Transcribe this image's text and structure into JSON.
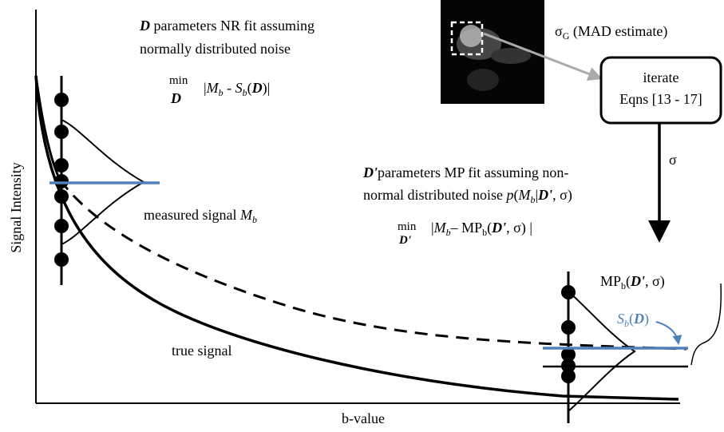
{
  "axes": {
    "y_label": "Signal Intensity",
    "x_label": "b-value"
  },
  "nr_fit": {
    "title": [
      "D",
      " parameters NR fit assuming"
    ],
    "subtitle": "normally distributed noise",
    "min": "min",
    "min_var": "D",
    "formula": [
      "|",
      "M",
      "b",
      " - ",
      "S",
      "b",
      "(",
      "D",
      ")",
      "|"
    ]
  },
  "mp_fit": {
    "title": [
      "D",
      "'",
      "parameters MP fit assuming  non-"
    ],
    "subtitle": [
      "normal distributed noise ",
      "p",
      "(",
      "M",
      "b",
      "|",
      "D",
      "'",
      ", σ)"
    ],
    "min": "min",
    "min_var": "D'",
    "formula": [
      "|",
      "M",
      "b",
      "– MP",
      "b",
      "(",
      "D",
      "'",
      ", σ) |"
    ]
  },
  "sigma_g": [
    "σ",
    "G",
    "  (MAD estimate)"
  ],
  "iterate": [
    "iterate",
    "Eqns [13 - 17]"
  ],
  "sigma": "σ",
  "measured": [
    "measured signal  ",
    "M",
    "b"
  ],
  "true_signal": "true signal",
  "mp_label": [
    "MP",
    "b",
    "(",
    "D",
    "'",
    ", σ)"
  ],
  "sb_label": [
    "S",
    "b",
    "(",
    "D",
    ")"
  ]
}
